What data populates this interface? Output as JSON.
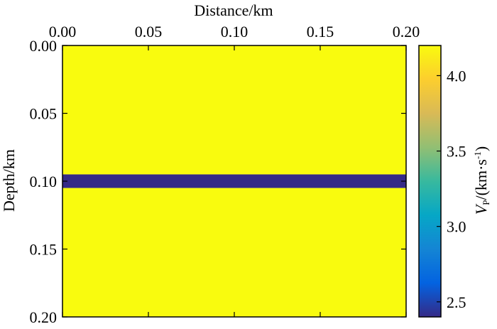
{
  "chart_data": {
    "type": "heatmap",
    "xlabel": "Distance/km",
    "ylabel": "Depth/km",
    "xlim": [
      0.0,
      0.2
    ],
    "ylim": [
      0.0,
      0.2
    ],
    "x_ticks": [
      "0.00",
      "0.05",
      "0.10",
      "0.15",
      "0.20"
    ],
    "y_ticks": [
      "0.00",
      "0.05",
      "0.10",
      "0.15",
      "0.20"
    ],
    "layers": [
      {
        "depth_top": 0.0,
        "depth_bottom": 0.095,
        "vp": 4.2
      },
      {
        "depth_top": 0.095,
        "depth_bottom": 0.105,
        "vp": 2.4
      },
      {
        "depth_top": 0.105,
        "depth_bottom": 0.2,
        "vp": 4.2
      }
    ],
    "colorbar": {
      "label_main": "V",
      "label_sub": "P",
      "label_rest": "/(km·s",
      "label_sup": "-1",
      "label_end": ")",
      "range": [
        2.4,
        4.2
      ],
      "ticks": [
        2.5,
        3.0,
        3.5,
        4.0
      ],
      "tick_labels": [
        "2.5",
        "3.0",
        "3.5",
        "4.0"
      ],
      "colormap": [
        "#352a87",
        "#0363e1",
        "#1485d4",
        "#06a7c6",
        "#38b99e",
        "#92bf73",
        "#d9ba56",
        "#fcce2e",
        "#f9fb0e"
      ]
    }
  }
}
